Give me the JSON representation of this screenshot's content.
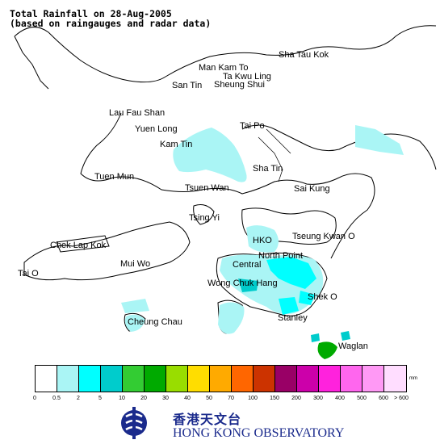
{
  "title": {
    "line1": "Total Rainfall on 28-Aug-2005",
    "line2": "(based on raingauges and radar data)"
  },
  "places": [
    {
      "id": "sha-tau-kok",
      "label": "Sha Tau Kok"
    },
    {
      "id": "man-kam-to",
      "label": "Man Kam To"
    },
    {
      "id": "ta-kwu-ling",
      "label": "Ta Kwu Ling"
    },
    {
      "id": "sheung-shui",
      "label": "Sheung Shui"
    },
    {
      "id": "san-tin",
      "label": "San Tin"
    },
    {
      "id": "lau-fau-shan",
      "label": "Lau Fau Shan"
    },
    {
      "id": "yuen-long",
      "label": "Yuen Long"
    },
    {
      "id": "kam-tin",
      "label": "Kam Tin"
    },
    {
      "id": "tai-po",
      "label": "Tai Po"
    },
    {
      "id": "sha-tin",
      "label": "Sha Tin"
    },
    {
      "id": "tuen-mun",
      "label": "Tuen Mun"
    },
    {
      "id": "tsuen-wan",
      "label": "Tsuen Wan"
    },
    {
      "id": "sai-kung",
      "label": "Sai Kung"
    },
    {
      "id": "tsing-yi",
      "label": "Tsing Yi"
    },
    {
      "id": "chek-lap-kok",
      "label": "Chek Lap Kok"
    },
    {
      "id": "hko",
      "label": "HKO"
    },
    {
      "id": "tseung-kwan-o",
      "label": "Tseung Kwan O"
    },
    {
      "id": "mui-wo",
      "label": "Mui Wo"
    },
    {
      "id": "north-point",
      "label": "North Point"
    },
    {
      "id": "central",
      "label": "Central"
    },
    {
      "id": "tai-o",
      "label": "Tai O"
    },
    {
      "id": "wong-chuk-hang",
      "label": "Wong Chuk Hang"
    },
    {
      "id": "shek-o",
      "label": "Shek O"
    },
    {
      "id": "cheung-chau",
      "label": "Cheung Chau"
    },
    {
      "id": "stanley",
      "label": "Stanley"
    },
    {
      "id": "waglan",
      "label": "Waglan"
    }
  ],
  "legend": {
    "unit": "mm",
    "colors": [
      "#ffffff",
      "#aaf5f5",
      "#00ffff",
      "#00cccc",
      "#33cc33",
      "#00aa00",
      "#99dd00",
      "#ffdd00",
      "#ffaa00",
      "#ff6600",
      "#cc3300",
      "#990066",
      "#cc00aa",
      "#ff22dd",
      "#ff66ee",
      "#ff99f5",
      "#ffddff"
    ],
    "ticks": [
      "0",
      "0.5",
      "2",
      "5",
      "10",
      "20",
      "30",
      "40",
      "50",
      "70",
      "100",
      "150",
      "200",
      "300",
      "400",
      "500",
      "600",
      "> 600"
    ]
  },
  "logo": {
    "chinese": "香港天文台",
    "english": "HONG KONG OBSERVATORY"
  }
}
